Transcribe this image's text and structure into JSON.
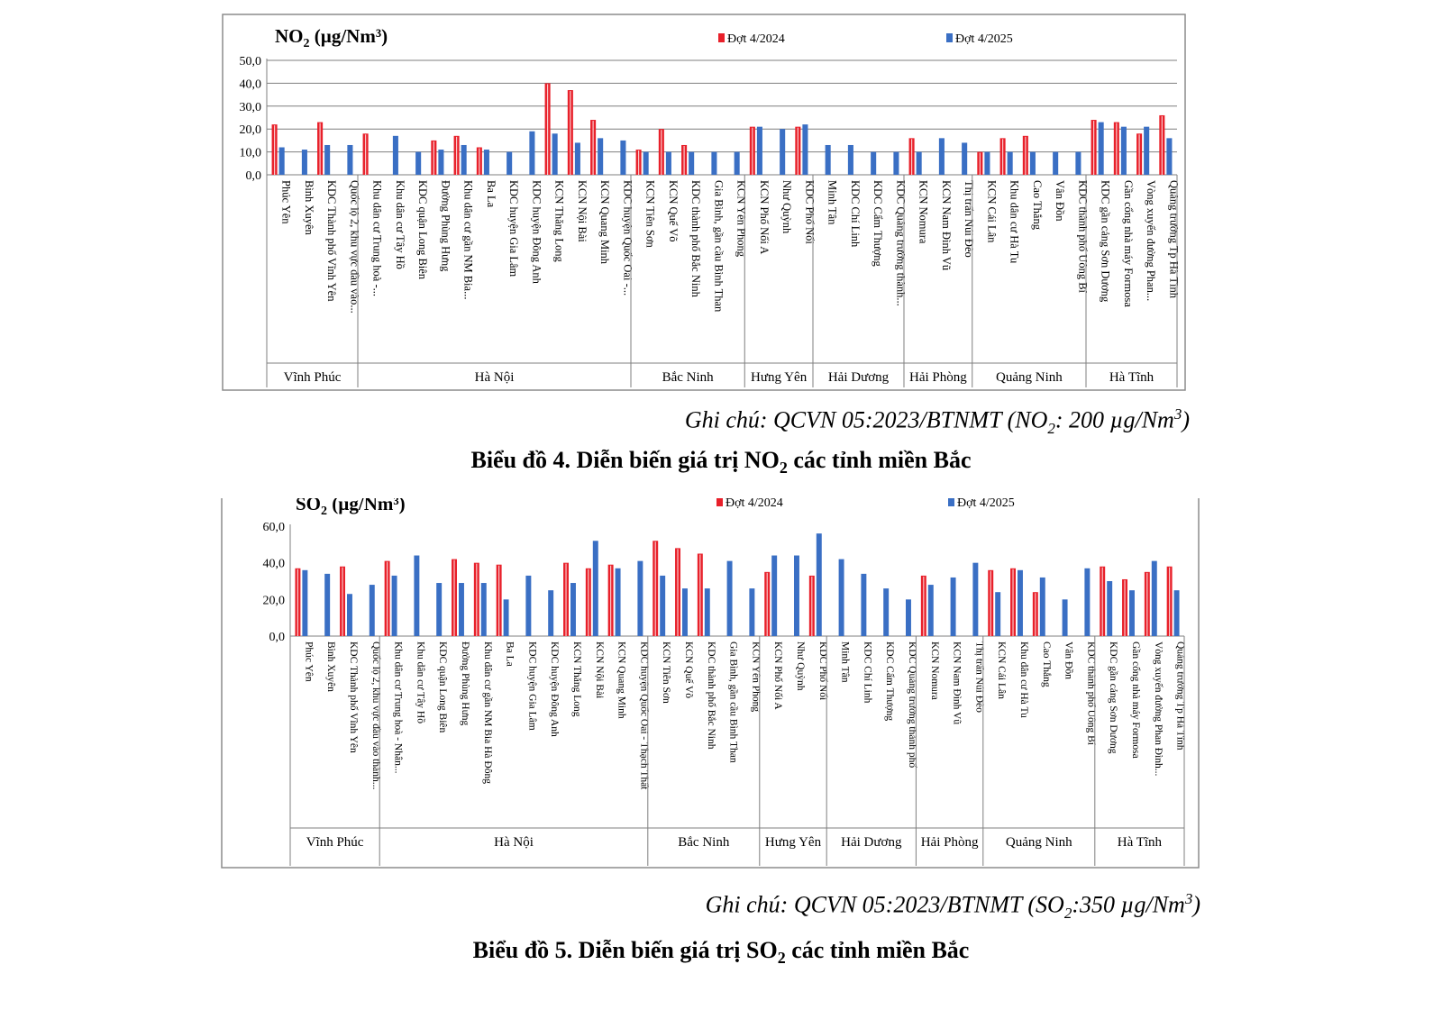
{
  "colors": {
    "series_2024": "#e8202a",
    "series_2025": "#3a6fc4",
    "grid": "#7f7f7f",
    "frame": "#8c8c8c"
  },
  "chart_data": [
    {
      "type": "bar",
      "title": "NO",
      "title_sub": "2",
      "title_unit": " (µg/Nm³)",
      "ylim": [
        0,
        50
      ],
      "yticks": [
        "0,0",
        "10,0",
        "20,0",
        "30,0",
        "40,0",
        "50,0"
      ],
      "ytick_values": [
        0,
        10,
        20,
        30,
        40,
        50
      ],
      "grid": true,
      "legend": "top",
      "categories": [
        "Phúc Yên",
        "Bình Xuyên",
        "KDC Thành phố Vĩnh Yên",
        "Quốc lộ 2, khu vực đầu vào...",
        "Khu dân cư Trung hoà -...",
        "Khu dân cư Tây Hồ",
        "KDC quận Long Biên",
        "Đường Phùng Hưng",
        "Khu dân cư gần NM Bia...",
        "Ba La",
        "KDC huyện Gia Lâm",
        "KDC huyện Đông Anh",
        "KCN Thăng Long",
        "KCN Nội Bài",
        "KCN Quang Minh",
        "KDC huyện Quốc Oai -...",
        "KCN Tiên Sơn",
        "KCN Quế Võ",
        "KDC thành phố Bắc Ninh",
        "Gia Bình, gần cầu Bình Than",
        "KCN Yên Phong",
        "KCN Phố Nối A",
        "Như Quỳnh",
        "KDC Phố Nối",
        "Minh Tân",
        "KDC Chí Linh",
        "KDC Cẩm Thượng",
        "KDC Quảng trường thành...",
        "KCN Nomura",
        "KCN Nam Đình Vũ",
        "Thị trấn Núi Đèo",
        "KCN Cái Lân",
        "Khu dân cư Hà Tu",
        "Cao Thắng",
        "Vân Đồn",
        "KDC thành phố Uông Bí",
        "KDC gần cảng Sơn Dương",
        "Gần cổng nhà máy Formosa",
        "Vòng xuyến đường Phan...",
        "Quảng trường Tp Hà Tĩnh"
      ],
      "groups": [
        {
          "name": "Vĩnh Phúc",
          "count": 4
        },
        {
          "name": "Hà Nội",
          "count": 12
        },
        {
          "name": "Bắc Ninh",
          "count": 5
        },
        {
          "name": "Hưng Yên",
          "count": 3
        },
        {
          "name": "Hải Dương",
          "count": 4
        },
        {
          "name": "Hải Phòng",
          "count": 3
        },
        {
          "name": "Quảng Ninh",
          "count": 5
        },
        {
          "name": "Hà Tĩnh",
          "count": 4
        }
      ],
      "series": [
        {
          "name": "Đợt 4/2024",
          "values": [
            22,
            null,
            23,
            null,
            18,
            null,
            null,
            15,
            17,
            12,
            null,
            null,
            40,
            37,
            24,
            null,
            11,
            20,
            13,
            null,
            null,
            21,
            null,
            21,
            null,
            null,
            null,
            null,
            16,
            null,
            null,
            10,
            16,
            17,
            null,
            null,
            24,
            23,
            18,
            26
          ]
        },
        {
          "name": "Đợt 4/2025",
          "values": [
            12,
            11,
            13,
            13,
            null,
            17,
            10,
            11,
            13,
            11,
            10,
            19,
            18,
            14,
            16,
            15,
            10,
            10,
            10,
            10,
            10,
            21,
            20,
            22,
            13,
            13,
            10,
            10,
            10,
            16,
            14,
            10,
            10,
            10,
            10,
            10,
            23,
            21,
            21,
            16
          ]
        }
      ]
    },
    {
      "type": "bar",
      "title": "SO",
      "title_sub": "2",
      "title_unit": " (µg/Nm³)",
      "ylim": [
        0,
        60
      ],
      "yticks": [
        "0,0",
        "20,0",
        "40,0",
        "60,0"
      ],
      "ytick_values": [
        0,
        20,
        40,
        60
      ],
      "grid": false,
      "legend": "top",
      "categories": [
        "Phúc Yên",
        "Bình Xuyên",
        "KDC Thành phố Vĩnh Yên",
        "Quốc lộ 2, khu vực đầu vào thành...",
        "Khu dân cư Trung hoà - Nhân...",
        "Khu dân cư Tây Hồ",
        "KDC quận Long Biên",
        "Đường Phùng Hưng",
        "Khu dân cư gần NM Bia Hà Đông",
        "Ba La",
        "KDC huyện Gia Lâm",
        "KDC huyện Đông Anh",
        "KCN Thăng Long",
        "KCN Nội Bài",
        "KCN Quang Minh",
        "KDC huyện Quốc Oai - Thạch Thất",
        "KCN Tiên Sơn",
        "KCN Quế Võ",
        "KDC thành phố Bắc Ninh",
        "Gia Bình, gần cầu Bình Than",
        "KCN Yên Phong",
        "KCN Phố Nối A",
        "Như Quỳnh",
        "KDC Phố Nối",
        "Minh Tân",
        "KDC Chí Linh",
        "KDC Cẩm Thượng",
        "KDC Quảng trường thành phố",
        "KCN Nomura",
        "KCN Nam Đình Vũ",
        "Thị trấn Núi Đèo",
        "KCN Cái Lân",
        "Khu dân cư Hà Tu",
        "Cao Thắng",
        "Vân Đồn",
        "KDC thành phố Uông Bí",
        "KDC gần cảng Sơn Dương",
        "Gần cổng nhà máy Formosa",
        "Vòng xuyến đường Phan Đình...",
        "Quảng trường Tp Hà Tĩnh"
      ],
      "groups": [
        {
          "name": "Vĩnh Phúc",
          "count": 4
        },
        {
          "name": "Hà Nội",
          "count": 12
        },
        {
          "name": "Bắc Ninh",
          "count": 5
        },
        {
          "name": "Hưng Yên",
          "count": 3
        },
        {
          "name": "Hải Dương",
          "count": 4
        },
        {
          "name": "Hải Phòng",
          "count": 3
        },
        {
          "name": "Quảng Ninh",
          "count": 5
        },
        {
          "name": "Hà Tĩnh",
          "count": 4
        }
      ],
      "series": [
        {
          "name": "Đợt 4/2024",
          "values": [
            37,
            null,
            38,
            null,
            41,
            null,
            null,
            42,
            40,
            39,
            null,
            null,
            40,
            37,
            39,
            null,
            52,
            48,
            45,
            null,
            null,
            35,
            null,
            33,
            null,
            null,
            null,
            null,
            33,
            null,
            null,
            36,
            37,
            24,
            null,
            null,
            38,
            31,
            35,
            38
          ]
        },
        {
          "name": "Đợt 4/2025",
          "values": [
            36,
            34,
            23,
            28,
            33,
            44,
            29,
            29,
            29,
            20,
            33,
            25,
            29,
            52,
            37,
            41,
            33,
            26,
            26,
            41,
            26,
            44,
            44,
            56,
            42,
            34,
            26,
            20,
            28,
            32,
            40,
            24,
            36,
            32,
            20,
            37,
            30,
            25,
            41,
            25
          ]
        }
      ]
    }
  ],
  "notes": {
    "no2_prefix": "Ghi chú: QCVN 05:2023/BTNMT (NO",
    "no2_sub": "2",
    "no2_suffix": ": 200 µg/Nm",
    "no2_sup": "3",
    "no2_close": ")",
    "so2_prefix": "Ghi chú: QCVN 05:2023/BTNMT (SO",
    "so2_sub": "2",
    "so2_suffix": ":350 µg/Nm",
    "so2_sup": "3",
    "so2_close": ")"
  },
  "captions": {
    "no2_prefix": "Biểu đồ 4. Diễn biến giá trị NO",
    "no2_sub": "2",
    "no2_suffix": " các tỉnh miền Bắc",
    "so2_prefix": "Biểu đồ 5. Diễn biến giá trị SO",
    "so2_sub": "2",
    "so2_suffix": " các tỉnh miền Bắc"
  }
}
